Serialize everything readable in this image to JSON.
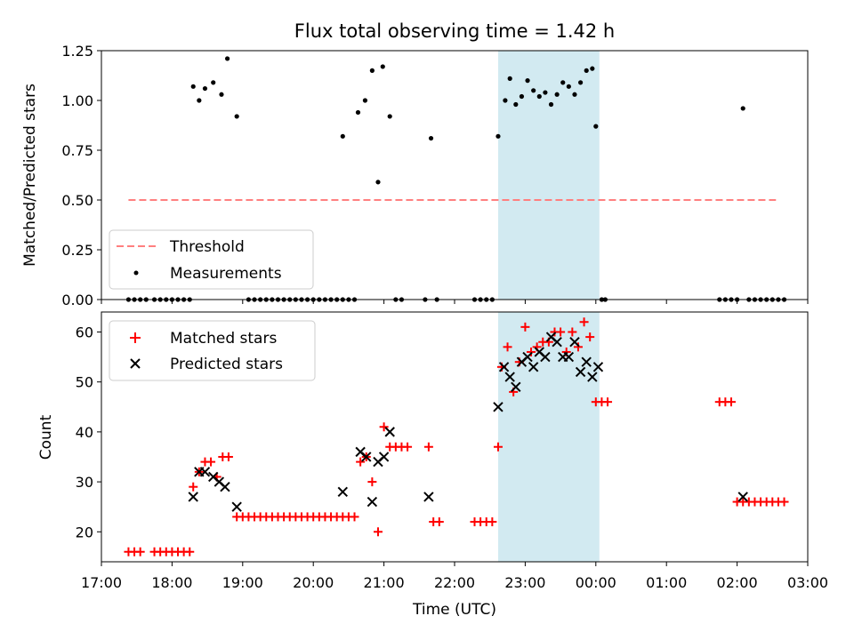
{
  "chart_data": [
    {
      "type": "scatter",
      "title": "Flux total observing time = 1.42 h",
      "xlabel": "",
      "ylabel": "Matched/Predicted stars",
      "x_unit": "time (UTC)",
      "xlim": [
        "17:00",
        "03:00"
      ],
      "ylim": [
        0,
        1.25
      ],
      "yticks": [
        "0.00",
        "0.25",
        "0.50",
        "0.75",
        "1.00",
        "1.25"
      ],
      "highlight_span": {
        "from": "22:37",
        "to": "00:03",
        "color": "#add8e6"
      },
      "legend": {
        "position": "lower-left"
      },
      "series": [
        {
          "name": "Threshold",
          "style": "dashed-line",
          "color": "#ff7f7f",
          "x": [
            "17:23",
            "02:33"
          ],
          "y": [
            0.5,
            0.5
          ]
        },
        {
          "name": "Measurements",
          "style": "dot",
          "color": "#000000",
          "x": [
            "18:18",
            "18:23",
            "18:28",
            "18:35",
            "18:42",
            "18:47",
            "18:55",
            "20:25",
            "20:38",
            "20:44",
            "20:50",
            "20:55",
            "20:59",
            "21:05",
            "21:40",
            "22:37",
            "22:43",
            "22:47",
            "22:52",
            "22:57",
            "23:02",
            "23:07",
            "23:12",
            "23:17",
            "23:22",
            "23:27",
            "23:32",
            "23:37",
            "23:42",
            "23:47",
            "23:52",
            "23:57",
            "00:00",
            "00:05",
            "02:05",
            "17:23",
            "17:28",
            "17:33",
            "17:38",
            "17:45",
            "17:50",
            "17:55",
            "18:00",
            "18:05",
            "18:10",
            "18:15",
            "19:05",
            "19:10",
            "19:15",
            "19:20",
            "19:25",
            "19:30",
            "19:35",
            "19:40",
            "19:45",
            "19:50",
            "19:55",
            "20:00",
            "20:05",
            "20:10",
            "20:15",
            "20:20",
            "20:25",
            "20:30",
            "20:35",
            "21:10",
            "21:15",
            "21:35",
            "21:45",
            "22:17",
            "22:22",
            "22:27",
            "22:32",
            "00:08",
            "01:45",
            "01:50",
            "01:55",
            "02:00",
            "02:10",
            "02:15",
            "02:20",
            "02:25",
            "02:30",
            "02:35",
            "02:40"
          ],
          "y": [
            1.07,
            1.0,
            1.06,
            1.09,
            1.03,
            1.21,
            0.92,
            0.82,
            0.94,
            1.0,
            1.15,
            0.59,
            1.17,
            0.92,
            0.81,
            0.82,
            1.0,
            1.11,
            0.98,
            1.02,
            1.1,
            1.05,
            1.02,
            1.04,
            0.98,
            1.03,
            1.09,
            1.07,
            1.03,
            1.09,
            1.15,
            1.16,
            0.87,
            0.0,
            0.96,
            0,
            0,
            0,
            0,
            0,
            0,
            0,
            0,
            0,
            0,
            0,
            0,
            0,
            0,
            0,
            0,
            0,
            0,
            0,
            0,
            0,
            0,
            0,
            0,
            0,
            0,
            0,
            0,
            0,
            0,
            0,
            0,
            0,
            0,
            0,
            0,
            0,
            0,
            0,
            0,
            0,
            0,
            0,
            0,
            0,
            0,
            0,
            0,
            0,
            0
          ]
        }
      ]
    },
    {
      "type": "scatter",
      "title": "",
      "xlabel": "Time (UTC)",
      "ylabel": "Count",
      "xlim": [
        "17:00",
        "03:00"
      ],
      "xticks": [
        "17:00",
        "18:00",
        "19:00",
        "20:00",
        "21:00",
        "22:00",
        "23:00",
        "00:00",
        "01:00",
        "02:00",
        "03:00"
      ],
      "ylim": [
        14,
        64
      ],
      "yticks": [
        "20",
        "30",
        "40",
        "50",
        "60"
      ],
      "highlight_span": {
        "from": "22:37",
        "to": "00:03",
        "color": "#add8e6"
      },
      "legend": {
        "position": "top-left"
      },
      "series": [
        {
          "name": "Matched stars",
          "marker": "plus",
          "color": "#ff0000",
          "x": [
            "17:23",
            "17:28",
            "17:33",
            "17:45",
            "17:50",
            "17:55",
            "18:00",
            "18:05",
            "18:10",
            "18:15",
            "18:18",
            "18:23",
            "18:28",
            "18:33",
            "18:38",
            "18:43",
            "18:48",
            "18:55",
            "19:00",
            "19:05",
            "19:10",
            "19:15",
            "19:20",
            "19:25",
            "19:30",
            "19:35",
            "19:40",
            "19:45",
            "19:50",
            "19:55",
            "20:00",
            "20:05",
            "20:10",
            "20:15",
            "20:20",
            "20:25",
            "20:30",
            "20:35",
            "20:40",
            "20:45",
            "20:50",
            "20:55",
            "21:00",
            "21:05",
            "21:10",
            "21:15",
            "21:20",
            "21:38",
            "21:42",
            "21:47",
            "22:17",
            "22:22",
            "22:27",
            "22:32",
            "22:37",
            "22:40",
            "22:45",
            "22:50",
            "22:55",
            "23:00",
            "23:05",
            "23:10",
            "23:15",
            "23:20",
            "23:25",
            "23:30",
            "23:35",
            "23:40",
            "23:45",
            "23:50",
            "23:55",
            "00:00",
            "00:05",
            "00:10",
            "01:45",
            "01:50",
            "01:55",
            "02:00",
            "02:05",
            "02:10",
            "02:15",
            "02:20",
            "02:25",
            "02:30",
            "02:35",
            "02:40"
          ],
          "y": [
            16,
            16,
            16,
            16,
            16,
            16,
            16,
            16,
            16,
            16,
            29,
            32,
            34,
            34,
            31,
            35,
            35,
            23,
            23,
            23,
            23,
            23,
            23,
            23,
            23,
            23,
            23,
            23,
            23,
            23,
            23,
            23,
            23,
            23,
            23,
            23,
            23,
            23,
            34,
            35,
            30,
            20,
            41,
            37,
            37,
            37,
            37,
            37,
            22,
            22,
            22,
            22,
            22,
            22,
            37,
            53,
            57,
            48,
            54,
            61,
            56,
            57,
            58,
            58,
            60,
            60,
            56,
            60,
            57,
            62,
            59,
            46,
            46,
            46,
            46,
            46,
            46,
            26,
            26,
            26,
            26,
            26,
            26,
            26,
            26,
            26
          ]
        },
        {
          "name": "Predicted stars",
          "marker": "x",
          "color": "#000000",
          "x": [
            "18:18",
            "18:23",
            "18:28",
            "18:35",
            "18:40",
            "18:45",
            "18:55",
            "20:25",
            "20:40",
            "20:45",
            "20:50",
            "20:55",
            "21:00",
            "21:05",
            "21:38",
            "22:37",
            "22:42",
            "22:47",
            "22:52",
            "22:57",
            "23:02",
            "23:07",
            "23:12",
            "23:17",
            "23:22",
            "23:27",
            "23:32",
            "23:37",
            "23:42",
            "23:47",
            "23:52",
            "23:57",
            "00:02",
            "02:05"
          ],
          "y": [
            27,
            32,
            32,
            31,
            30,
            29,
            25,
            28,
            36,
            35,
            26,
            34,
            35,
            40,
            27,
            45,
            53,
            51,
            49,
            54,
            55,
            53,
            56,
            55,
            59,
            58,
            55,
            55,
            58,
            52,
            54,
            51,
            53,
            27
          ]
        }
      ]
    }
  ]
}
